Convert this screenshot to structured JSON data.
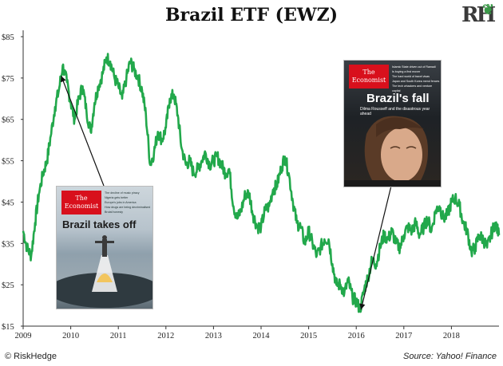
{
  "chart_data": {
    "type": "line",
    "title": "Brazil ETF (EWZ)",
    "xlabel": "",
    "ylabel": "",
    "x_ticks": [
      "2009",
      "2010",
      "2011",
      "2012",
      "2013",
      "2014",
      "2015",
      "2016",
      "2017",
      "2018"
    ],
    "y_ticks": [
      "$15",
      "$25",
      "$35",
      "$45",
      "$55",
      "$65",
      "$75",
      "$85"
    ],
    "ylim": [
      15,
      85
    ],
    "xlim": [
      2009.0,
      2019.0
    ],
    "grid": false,
    "series": [
      {
        "color": "#22a84b",
        "x": [
          2009.0,
          2009.08,
          2009.17,
          2009.25,
          2009.33,
          2009.42,
          2009.5,
          2009.58,
          2009.67,
          2009.75,
          2009.83,
          2009.92,
          2010.0,
          2010.08,
          2010.17,
          2010.25,
          2010.33,
          2010.42,
          2010.5,
          2010.58,
          2010.67,
          2010.75,
          2010.83,
          2010.92,
          2011.0,
          2011.08,
          2011.17,
          2011.25,
          2011.33,
          2011.42,
          2011.5,
          2011.58,
          2011.67,
          2011.75,
          2011.83,
          2011.92,
          2012.0,
          2012.08,
          2012.17,
          2012.25,
          2012.33,
          2012.42,
          2012.5,
          2012.58,
          2012.67,
          2012.75,
          2012.83,
          2012.92,
          2013.0,
          2013.08,
          2013.17,
          2013.25,
          2013.33,
          2013.42,
          2013.5,
          2013.58,
          2013.67,
          2013.75,
          2013.83,
          2013.92,
          2014.0,
          2014.08,
          2014.17,
          2014.25,
          2014.33,
          2014.42,
          2014.5,
          2014.58,
          2014.67,
          2014.75,
          2014.83,
          2014.92,
          2015.0,
          2015.08,
          2015.17,
          2015.25,
          2015.33,
          2015.42,
          2015.5,
          2015.58,
          2015.67,
          2015.75,
          2015.83,
          2015.92,
          2016.0,
          2016.08,
          2016.17,
          2016.25,
          2016.33,
          2016.42,
          2016.5,
          2016.58,
          2016.67,
          2016.75,
          2016.83,
          2016.92,
          2017.0,
          2017.08,
          2017.17,
          2017.25,
          2017.33,
          2017.42,
          2017.5,
          2017.58,
          2017.67,
          2017.75,
          2017.83,
          2017.92,
          2018.0,
          2018.08,
          2018.17,
          2018.25,
          2018.33,
          2018.42,
          2018.5,
          2018.58,
          2018.67,
          2018.75,
          2018.83,
          2018.92,
          2019.0
        ],
        "values": [
          38,
          34,
          32,
          40,
          47,
          52,
          55,
          61,
          68,
          72,
          78,
          74,
          69,
          65,
          70,
          73,
          67,
          62,
          69,
          73,
          76,
          80,
          79,
          75,
          73,
          70,
          75,
          79,
          77,
          75,
          72,
          66,
          54,
          57,
          62,
          60,
          63,
          70,
          71,
          66,
          58,
          54,
          55,
          52,
          53,
          55,
          57,
          54,
          55,
          56,
          54,
          52,
          53,
          44,
          41,
          43,
          47,
          47,
          42,
          39,
          39,
          43,
          44,
          48,
          49,
          53,
          56,
          52,
          45,
          40,
          39,
          35,
          38,
          35,
          32,
          34,
          36,
          36,
          30,
          25,
          25,
          23,
          26,
          22,
          21,
          19,
          24,
          27,
          31,
          30,
          34,
          37,
          36,
          38,
          35,
          34,
          37,
          39,
          38,
          40,
          37,
          39,
          41,
          38,
          43,
          44,
          41,
          42,
          45,
          46,
          44,
          40,
          38,
          33,
          34,
          37,
          36,
          34,
          37,
          40,
          37
        ]
      }
    ],
    "annotations": [
      {
        "label": "The Economist — Brazil takes off",
        "arrow_to_x": 2009.8,
        "arrow_to_y": 75.5
      },
      {
        "label": "The Economist — Brazil's fall",
        "arrow_to_x": 2016.1,
        "arrow_to_y": 19.0
      }
    ]
  },
  "branding": {
    "logo_text": "RH",
    "footer_left": "© RiskHedge",
    "footer_right": "Source: Yahoo! Finance"
  },
  "covers": [
    {
      "masthead": "The Economist",
      "headline": "Brazil takes off",
      "blurbs": [
        "The decline of music piracy",
        "Nigeria gets better",
        "Europe's jobs in America",
        "How drugs are being decriminalised",
        "Brutal honesty"
      ],
      "headline_color": "#ffffff"
    },
    {
      "masthead": "The Economist",
      "headline": "Brazil's fall",
      "subhead": "Dilma Rousseff and the disastrous year ahead",
      "blurbs": [
        "Islamic State driven out of Ramadi",
        "Is buying a first mover",
        "The hard world of travel visas",
        "Japan and South Korea mend fences",
        "The tech whackers and venture capital"
      ],
      "headline_color": "#ffffff"
    }
  ]
}
